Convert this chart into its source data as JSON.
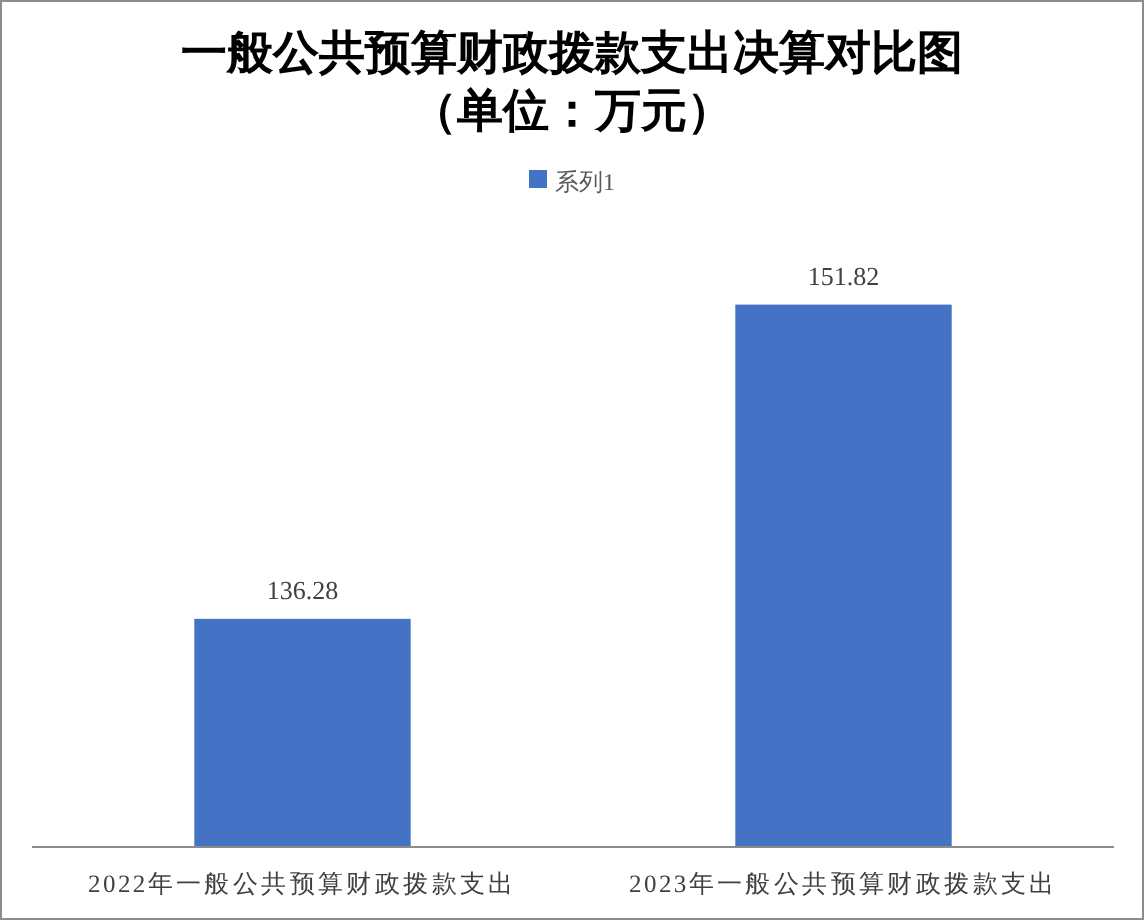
{
  "chart_data": {
    "type": "bar",
    "title": "一般公共预算财政拨款支出决算对比图",
    "subtitle": "（单位：万元）",
    "categories": [
      "2022年一般公共预算财政拨款支出",
      "2023年一般公共预算财政拨款支出"
    ],
    "series": [
      {
        "name": "系列1",
        "color": "#4472c4",
        "values": [
          136.28,
          151.82
        ]
      }
    ],
    "ylim": [
      125,
      151.82
    ],
    "tick_labels": "x",
    "data_labels": true,
    "legend": "top"
  }
}
